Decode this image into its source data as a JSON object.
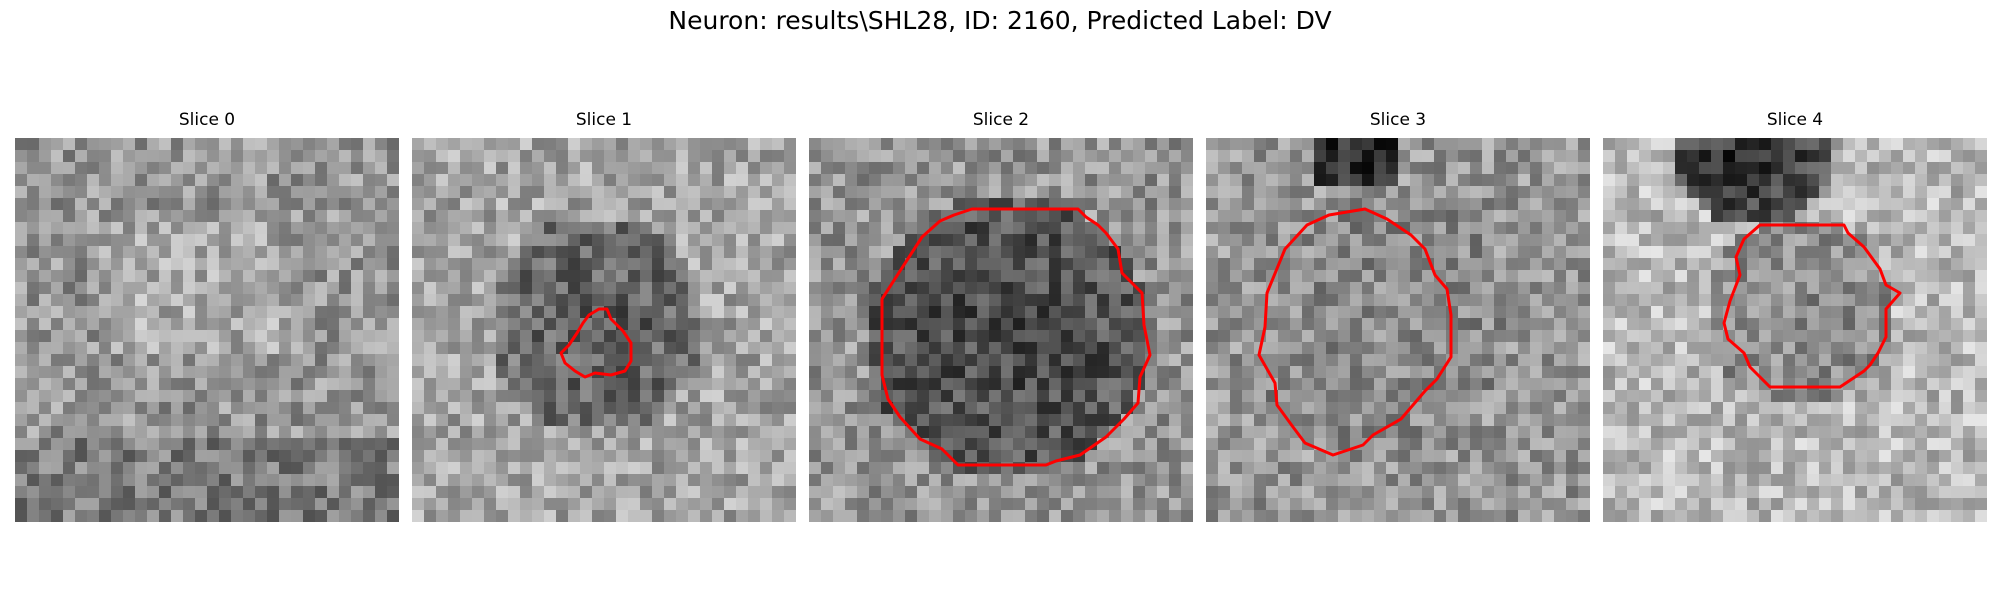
{
  "figure": {
    "title": "Neuron: results\\SHL28, ID: 2160, Predicted Label: DV"
  },
  "colors": {
    "contour": "#ff0000",
    "background": "#ffffff"
  },
  "panels": [
    {
      "title": "Slice 0",
      "has_contour": false
    },
    {
      "title": "Slice 1",
      "has_contour": true
    },
    {
      "title": "Slice 2",
      "has_contour": true
    },
    {
      "title": "Slice 3",
      "has_contour": true
    },
    {
      "title": "Slice 4",
      "has_contour": true
    }
  ]
}
